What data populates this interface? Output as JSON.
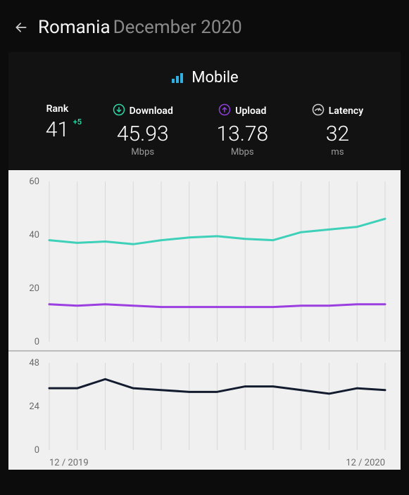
{
  "header": {
    "country": "Romania",
    "date": "December 2020"
  },
  "panel": {
    "title": "Mobile"
  },
  "metrics": {
    "rank": {
      "label": "Rank",
      "value": "41",
      "delta": "+5"
    },
    "download": {
      "label": "Download",
      "value": "45.93",
      "unit": "Mbps",
      "icon_color": "#2bd8a5"
    },
    "upload": {
      "label": "Upload",
      "value": "13.78",
      "unit": "Mbps",
      "icon_color": "#8b3fd6"
    },
    "latency": {
      "label": "Latency",
      "value": "32",
      "unit": "ms",
      "icon_color": "#cfcfcf"
    }
  },
  "chart_top": {
    "type": "line",
    "background_color": "#f0f0f0",
    "grid_color": "#d8d8d8",
    "ylim": [
      0,
      60
    ],
    "yticks": [
      0,
      20,
      40,
      60
    ],
    "x_count": 13,
    "series": [
      {
        "name": "download",
        "color": "#3ed0b8",
        "values": [
          38,
          37,
          37.5,
          36.5,
          38,
          39,
          39.5,
          38.5,
          38,
          41,
          42,
          43,
          46
        ]
      },
      {
        "name": "upload",
        "color": "#9b3fe0",
        "values": [
          14,
          13.5,
          14,
          13.5,
          13,
          13,
          13,
          13,
          13,
          13.5,
          13.5,
          14,
          14
        ]
      }
    ],
    "x_labels": {
      "start": "12 / 2019",
      "end": "12 / 2020"
    }
  },
  "chart_bottom": {
    "type": "line",
    "background_color": "#f0f0f0",
    "grid_color": "#d8d8d8",
    "ylim": [
      0,
      48
    ],
    "yticks": [
      0,
      24,
      48
    ],
    "x_count": 13,
    "series": [
      {
        "name": "latency",
        "color": "#131c2e",
        "values": [
          34,
          34,
          39,
          34,
          33,
          32,
          32,
          35,
          35,
          33,
          31,
          34,
          33
        ]
      }
    ],
    "x_labels": {
      "start": "12 / 2019",
      "end": "12 / 2020"
    }
  },
  "styling": {
    "page_bg": "#0c0c0c",
    "panel_bg": "#121212",
    "text_primary": "#ffffff",
    "text_muted": "#8a8a8a",
    "delta_positive": "#2bd8a5"
  }
}
